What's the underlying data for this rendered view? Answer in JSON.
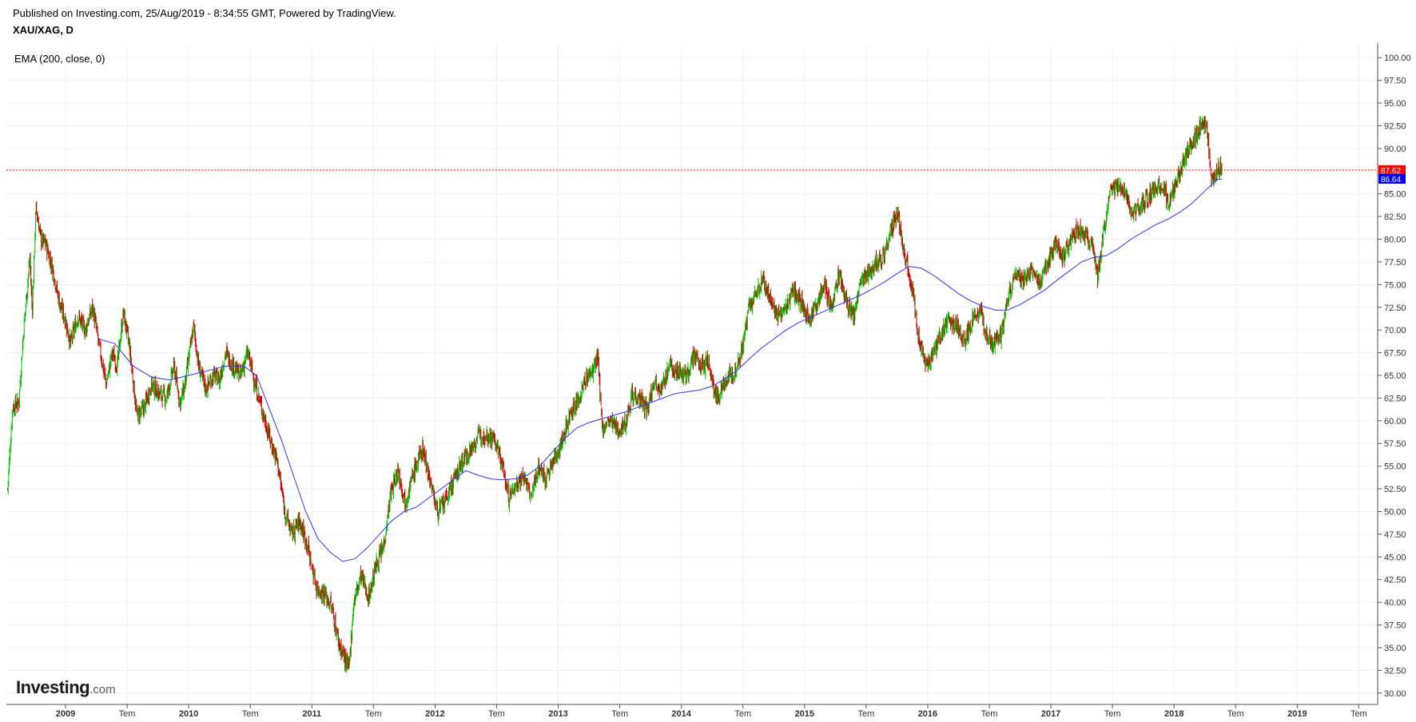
{
  "header": {
    "published": "Published on Investing.com, 25/Aug/2019 - 8:34:55 GMT, Powered by TradingView.",
    "symbol": "XAU/XAG, D"
  },
  "logo": {
    "main": "Investing",
    "suffix": ".com"
  },
  "chart_data": {
    "type": "candlestick",
    "indicator_label": "EMA (200, close, 0)",
    "ylim": [
      28.75,
      101.25
    ],
    "y_ticks": [
      "30.00",
      "32.50",
      "35.00",
      "37.50",
      "40.00",
      "42.50",
      "45.00",
      "47.50",
      "50.00",
      "52.50",
      "55.00",
      "57.50",
      "60.00",
      "62.50",
      "65.00",
      "67.50",
      "70.00",
      "72.50",
      "75.00",
      "77.50",
      "80.00",
      "82.50",
      "85.00",
      "87.50",
      "90.00",
      "92.50",
      "95.00",
      "97.50",
      "100.00"
    ],
    "x_ticks": [
      {
        "label": "2009",
        "t": 2009.0,
        "bold": true
      },
      {
        "label": "Tem",
        "t": 2009.5,
        "bold": false
      },
      {
        "label": "2010",
        "t": 2010.0,
        "bold": true
      },
      {
        "label": "Tem",
        "t": 2010.5,
        "bold": false
      },
      {
        "label": "2011",
        "t": 2011.0,
        "bold": true
      },
      {
        "label": "Tem",
        "t": 2011.5,
        "bold": false
      },
      {
        "label": "2012",
        "t": 2012.0,
        "bold": true
      },
      {
        "label": "Tem",
        "t": 2012.5,
        "bold": false
      },
      {
        "label": "2013",
        "t": 2013.0,
        "bold": true
      },
      {
        "label": "Tem",
        "t": 2013.5,
        "bold": false
      },
      {
        "label": "2014",
        "t": 2014.0,
        "bold": true
      },
      {
        "label": "Tem",
        "t": 2014.5,
        "bold": false
      },
      {
        "label": "2015",
        "t": 2015.0,
        "bold": true
      },
      {
        "label": "Tem",
        "t": 2015.5,
        "bold": false
      },
      {
        "label": "2016",
        "t": 2016.0,
        "bold": true
      },
      {
        "label": "Tem",
        "t": 2016.5,
        "bold": false
      },
      {
        "label": "2017",
        "t": 2017.0,
        "bold": true
      },
      {
        "label": "Tem",
        "t": 2017.5,
        "bold": false
      },
      {
        "label": "2018",
        "t": 2018.0,
        "bold": true
      },
      {
        "label": "Tem",
        "t": 2018.5,
        "bold": false
      },
      {
        "label": "2019",
        "t": 2019.0,
        "bold": true
      },
      {
        "label": "Tem",
        "t": 2019.5,
        "bold": false
      }
    ],
    "xlim": [
      2008.52,
      2019.64
    ],
    "close_path": [
      [
        2008.53,
        52.5
      ],
      [
        2008.57,
        61.5
      ],
      [
        2008.62,
        62.0
      ],
      [
        2008.66,
        70.0
      ],
      [
        2008.71,
        78.0
      ],
      [
        2008.73,
        72.0
      ],
      [
        2008.76,
        83.5
      ],
      [
        2008.8,
        80.0
      ],
      [
        2008.84,
        79.5
      ],
      [
        2008.9,
        76.5
      ],
      [
        2008.95,
        73.0
      ],
      [
        2009.0,
        71.0
      ],
      [
        2009.04,
        68.5
      ],
      [
        2009.1,
        71.5
      ],
      [
        2009.16,
        70.0
      ],
      [
        2009.22,
        72.5
      ],
      [
        2009.27,
        68.5
      ],
      [
        2009.33,
        64.0
      ],
      [
        2009.38,
        67.5
      ],
      [
        2009.42,
        66.0
      ],
      [
        2009.47,
        72.0
      ],
      [
        2009.52,
        68.0
      ],
      [
        2009.58,
        60.5
      ],
      [
        2009.64,
        61.5
      ],
      [
        2009.7,
        64.0
      ],
      [
        2009.76,
        63.0
      ],
      [
        2009.82,
        62.5
      ],
      [
        2009.88,
        66.0
      ],
      [
        2009.93,
        62.0
      ],
      [
        2009.97,
        64.0
      ],
      [
        2010.04,
        70.5
      ],
      [
        2010.08,
        66.0
      ],
      [
        2010.14,
        63.5
      ],
      [
        2010.2,
        65.0
      ],
      [
        2010.25,
        64.5
      ],
      [
        2010.3,
        67.5
      ],
      [
        2010.36,
        66.0
      ],
      [
        2010.42,
        65.0
      ],
      [
        2010.48,
        67.5
      ],
      [
        2010.54,
        64.0
      ],
      [
        2010.6,
        61.0
      ],
      [
        2010.66,
        58.0
      ],
      [
        2010.72,
        55.5
      ],
      [
        2010.78,
        50.0
      ],
      [
        2010.84,
        47.5
      ],
      [
        2010.9,
        49.0
      ],
      [
        2010.96,
        46.5
      ],
      [
        2011.04,
        41.5
      ],
      [
        2011.1,
        41.0
      ],
      [
        2011.16,
        39.5
      ],
      [
        2011.22,
        35.5
      ],
      [
        2011.3,
        32.5
      ],
      [
        2011.34,
        40.0
      ],
      [
        2011.4,
        43.0
      ],
      [
        2011.46,
        40.5
      ],
      [
        2011.52,
        44.0
      ],
      [
        2011.58,
        46.0
      ],
      [
        2011.64,
        52.0
      ],
      [
        2011.7,
        54.5
      ],
      [
        2011.76,
        51.0
      ],
      [
        2011.82,
        54.0
      ],
      [
        2011.9,
        57.0
      ],
      [
        2011.96,
        53.5
      ],
      [
        2012.02,
        50.0
      ],
      [
        2012.08,
        51.0
      ],
      [
        2012.14,
        53.0
      ],
      [
        2012.22,
        55.5
      ],
      [
        2012.3,
        57.0
      ],
      [
        2012.36,
        58.5
      ],
      [
        2012.42,
        58.5
      ],
      [
        2012.48,
        58.0
      ],
      [
        2012.54,
        55.5
      ],
      [
        2012.6,
        51.5
      ],
      [
        2012.66,
        53.0
      ],
      [
        2012.72,
        54.0
      ],
      [
        2012.78,
        51.5
      ],
      [
        2012.84,
        55.0
      ],
      [
        2012.9,
        53.5
      ],
      [
        2012.96,
        55.5
      ],
      [
        2013.04,
        58.0
      ],
      [
        2013.1,
        61.0
      ],
      [
        2013.16,
        62.0
      ],
      [
        2013.22,
        64.5
      ],
      [
        2013.28,
        65.5
      ],
      [
        2013.32,
        67.0
      ],
      [
        2013.36,
        59.0
      ],
      [
        2013.42,
        60.0
      ],
      [
        2013.48,
        59.0
      ],
      [
        2013.54,
        59.5
      ],
      [
        2013.6,
        63.0
      ],
      [
        2013.66,
        62.5
      ],
      [
        2013.72,
        61.0
      ],
      [
        2013.78,
        64.5
      ],
      [
        2013.84,
        63.5
      ],
      [
        2013.9,
        66.0
      ],
      [
        2013.96,
        65.5
      ],
      [
        2014.04,
        65.0
      ],
      [
        2014.1,
        67.0
      ],
      [
        2014.16,
        66.0
      ],
      [
        2014.22,
        66.5
      ],
      [
        2014.26,
        63.5
      ],
      [
        2014.3,
        62.5
      ],
      [
        2014.36,
        64.5
      ],
      [
        2014.42,
        65.0
      ],
      [
        2014.46,
        66.5
      ],
      [
        2014.5,
        68.0
      ],
      [
        2014.54,
        72.0
      ],
      [
        2014.58,
        73.0
      ],
      [
        2014.62,
        74.5
      ],
      [
        2014.66,
        75.5
      ],
      [
        2014.72,
        73.5
      ],
      [
        2014.78,
        71.5
      ],
      [
        2014.84,
        72.0
      ],
      [
        2014.9,
        74.5
      ],
      [
        2014.96,
        73.5
      ],
      [
        2015.04,
        71.0
      ],
      [
        2015.1,
        73.0
      ],
      [
        2015.16,
        75.0
      ],
      [
        2015.22,
        72.5
      ],
      [
        2015.28,
        76.0
      ],
      [
        2015.34,
        73.0
      ],
      [
        2015.4,
        71.5
      ],
      [
        2015.46,
        75.5
      ],
      [
        2015.52,
        76.5
      ],
      [
        2015.58,
        77.5
      ],
      [
        2015.64,
        78.0
      ],
      [
        2015.7,
        81.0
      ],
      [
        2015.76,
        82.5
      ],
      [
        2015.8,
        79.0
      ],
      [
        2015.84,
        77.0
      ],
      [
        2015.88,
        74.0
      ],
      [
        2015.94,
        68.0
      ],
      [
        2016.0,
        66.0
      ],
      [
        2016.06,
        68.0
      ],
      [
        2016.12,
        70.0
      ],
      [
        2016.18,
        71.0
      ],
      [
        2016.24,
        70.5
      ],
      [
        2016.3,
        68.5
      ],
      [
        2016.36,
        71.0
      ],
      [
        2016.42,
        72.0
      ],
      [
        2016.48,
        69.5
      ],
      [
        2016.54,
        68.5
      ],
      [
        2016.6,
        69.5
      ],
      [
        2016.66,
        74.0
      ],
      [
        2016.72,
        76.0
      ],
      [
        2016.78,
        75.5
      ],
      [
        2016.84,
        76.5
      ],
      [
        2016.9,
        75.0
      ],
      [
        2016.96,
        77.0
      ],
      [
        2017.04,
        79.5
      ],
      [
        2017.1,
        78.0
      ],
      [
        2017.16,
        80.0
      ],
      [
        2017.22,
        81.0
      ],
      [
        2017.28,
        80.5
      ],
      [
        2017.34,
        79.0
      ],
      [
        2017.38,
        76.0
      ],
      [
        2017.42,
        80.0
      ],
      [
        2017.48,
        85.0
      ],
      [
        2017.54,
        86.0
      ],
      [
        2017.6,
        85.5
      ],
      [
        2017.66,
        83.0
      ],
      [
        2017.72,
        83.5
      ],
      [
        2017.78,
        84.5
      ],
      [
        2017.84,
        85.5
      ],
      [
        2017.9,
        86.0
      ],
      [
        2017.96,
        84.0
      ],
      [
        2018.02,
        86.5
      ],
      [
        2018.08,
        88.5
      ],
      [
        2018.12,
        90.0
      ],
      [
        2018.16,
        91.0
      ],
      [
        2018.2,
        92.0
      ],
      [
        2018.24,
        93.0
      ],
      [
        2018.27,
        92.0
      ],
      [
        2018.3,
        87.0
      ],
      [
        2018.33,
        86.5
      ],
      [
        2018.36,
        88.0
      ],
      [
        2018.39,
        87.6
      ]
    ],
    "ema_path": [
      [
        2009.27,
        69.0
      ],
      [
        2009.4,
        68.5
      ],
      [
        2009.55,
        66.0
      ],
      [
        2009.7,
        64.8
      ],
      [
        2009.85,
        64.5
      ],
      [
        2010.0,
        65.0
      ],
      [
        2010.15,
        65.5
      ],
      [
        2010.3,
        66.0
      ],
      [
        2010.45,
        66.0
      ],
      [
        2010.55,
        65.0
      ],
      [
        2010.65,
        61.5
      ],
      [
        2010.75,
        58.0
      ],
      [
        2010.85,
        54.0
      ],
      [
        2010.95,
        50.0
      ],
      [
        2011.05,
        47.0
      ],
      [
        2011.15,
        45.5
      ],
      [
        2011.25,
        44.5
      ],
      [
        2011.35,
        44.8
      ],
      [
        2011.45,
        46.0
      ],
      [
        2011.55,
        47.5
      ],
      [
        2011.65,
        49.0
      ],
      [
        2011.75,
        50.0
      ],
      [
        2011.85,
        50.5
      ],
      [
        2011.95,
        51.5
      ],
      [
        2012.05,
        52.5
      ],
      [
        2012.15,
        53.5
      ],
      [
        2012.25,
        54.5
      ],
      [
        2012.35,
        54.0
      ],
      [
        2012.45,
        53.6
      ],
      [
        2012.55,
        53.5
      ],
      [
        2012.65,
        53.6
      ],
      [
        2012.75,
        54.0
      ],
      [
        2012.85,
        55.0
      ],
      [
        2012.95,
        56.5
      ],
      [
        2013.05,
        58.0
      ],
      [
        2013.15,
        59.2
      ],
      [
        2013.25,
        59.8
      ],
      [
        2013.35,
        60.2
      ],
      [
        2013.45,
        60.6
      ],
      [
        2013.55,
        61.0
      ],
      [
        2013.65,
        61.5
      ],
      [
        2013.75,
        62.0
      ],
      [
        2013.85,
        62.5
      ],
      [
        2013.95,
        63.0
      ],
      [
        2014.05,
        63.2
      ],
      [
        2014.15,
        63.4
      ],
      [
        2014.25,
        63.8
      ],
      [
        2014.35,
        64.6
      ],
      [
        2014.45,
        65.5
      ],
      [
        2014.55,
        66.8
      ],
      [
        2014.65,
        68.0
      ],
      [
        2014.75,
        69.0
      ],
      [
        2014.85,
        70.0
      ],
      [
        2014.95,
        70.8
      ],
      [
        2015.05,
        71.4
      ],
      [
        2015.15,
        72.0
      ],
      [
        2015.25,
        72.6
      ],
      [
        2015.35,
        73.2
      ],
      [
        2015.45,
        73.8
      ],
      [
        2015.55,
        74.5
      ],
      [
        2015.65,
        75.3
      ],
      [
        2015.75,
        76.2
      ],
      [
        2015.85,
        77.0
      ],
      [
        2015.95,
        76.8
      ],
      [
        2016.05,
        76.0
      ],
      [
        2016.15,
        75.0
      ],
      [
        2016.25,
        74.0
      ],
      [
        2016.35,
        73.2
      ],
      [
        2016.45,
        72.6
      ],
      [
        2016.55,
        72.2
      ],
      [
        2016.65,
        72.2
      ],
      [
        2016.75,
        72.8
      ],
      [
        2016.85,
        73.6
      ],
      [
        2016.95,
        74.4
      ],
      [
        2017.05,
        75.5
      ],
      [
        2017.15,
        76.5
      ],
      [
        2017.25,
        77.5
      ],
      [
        2017.35,
        78.0
      ],
      [
        2017.45,
        78.2
      ],
      [
        2017.55,
        79.0
      ],
      [
        2017.65,
        80.0
      ],
      [
        2017.75,
        80.8
      ],
      [
        2017.85,
        81.6
      ],
      [
        2017.95,
        82.2
      ],
      [
        2018.05,
        83.0
      ],
      [
        2018.15,
        84.0
      ],
      [
        2018.25,
        85.3
      ],
      [
        2018.35,
        86.6
      ],
      [
        2018.39,
        86.64
      ]
    ],
    "price_lines": [
      {
        "label": "87.62",
        "value": 87.62,
        "color": "#ff0000"
      },
      {
        "label": "86.64",
        "value": 86.64,
        "color": "#0000ff"
      }
    ],
    "colors": {
      "up": "#00c000",
      "down": "#cc0000",
      "ema": "#3333ff",
      "grid": "#f0f0f0"
    }
  }
}
